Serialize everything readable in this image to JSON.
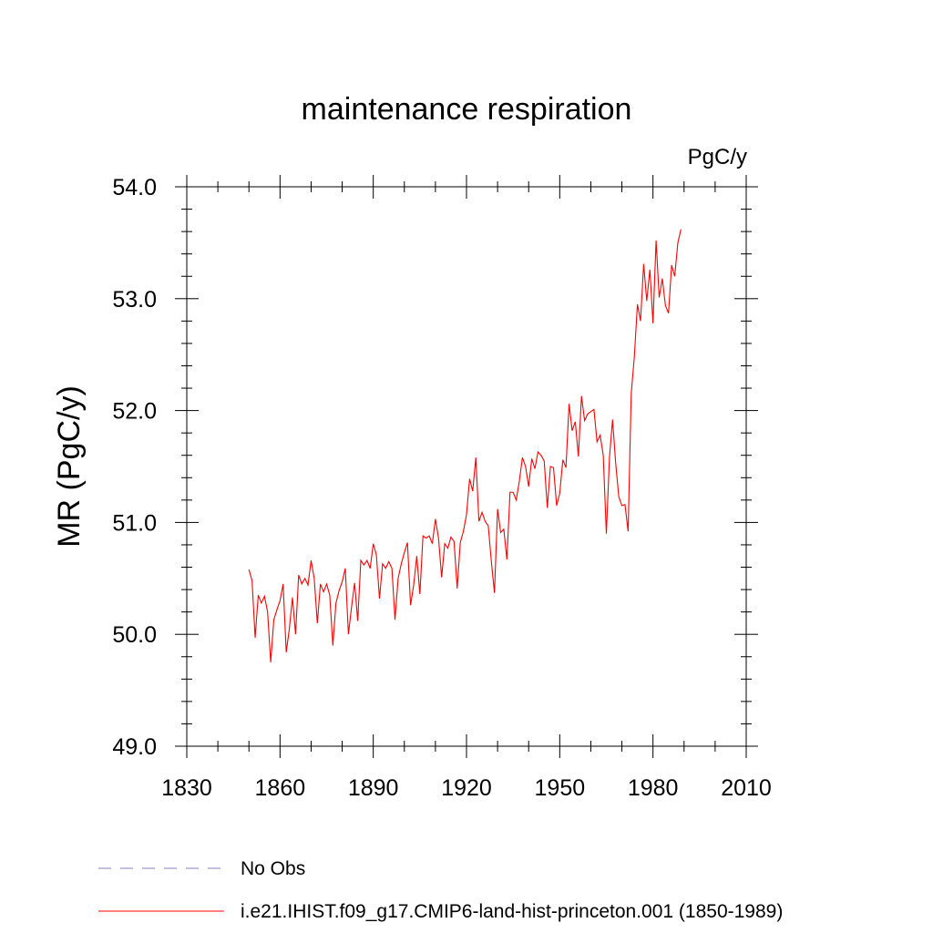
{
  "chart_data": {
    "type": "line",
    "title": "maintenance respiration",
    "units": "PgC/y",
    "ylabel": "MR  (PgC/y)",
    "xlabel": "",
    "xlim": [
      1830,
      2010
    ],
    "ylim": [
      49.0,
      54.0
    ],
    "x_ticks": [
      1830,
      1860,
      1890,
      1920,
      1950,
      1980,
      2010
    ],
    "x_tick_labels": [
      "1830",
      "1860",
      "1890",
      "1920",
      "1950",
      "1980",
      "2010"
    ],
    "y_ticks": [
      49.0,
      50.0,
      51.0,
      52.0,
      53.0,
      54.0
    ],
    "y_tick_labels": [
      "49.0",
      "50.0",
      "51.0",
      "52.0",
      "53.0",
      "54.0"
    ],
    "grid": false,
    "legend_position": "bottom",
    "series": [
      {
        "name": "No Obs",
        "color": "#8a7fc0",
        "dash": "dashed",
        "x": [],
        "values": []
      },
      {
        "name": "i.e21.IHIST.f09_g17.CMIP6-land-hist-princeton.001 (1850-1989)",
        "color": "#ff0000",
        "dash": "solid",
        "x": [
          1850,
          1851,
          1852,
          1853,
          1854,
          1855,
          1856,
          1857,
          1858,
          1859,
          1860,
          1861,
          1862,
          1863,
          1864,
          1865,
          1866,
          1867,
          1868,
          1869,
          1870,
          1871,
          1872,
          1873,
          1874,
          1875,
          1876,
          1877,
          1878,
          1879,
          1880,
          1881,
          1882,
          1883,
          1884,
          1885,
          1886,
          1887,
          1888,
          1889,
          1890,
          1891,
          1892,
          1893,
          1894,
          1895,
          1896,
          1897,
          1898,
          1899,
          1900,
          1901,
          1902,
          1903,
          1904,
          1905,
          1906,
          1907,
          1908,
          1909,
          1910,
          1911,
          1912,
          1913,
          1914,
          1915,
          1916,
          1917,
          1918,
          1919,
          1920,
          1921,
          1922,
          1923,
          1924,
          1925,
          1926,
          1927,
          1928,
          1929,
          1930,
          1931,
          1932,
          1933,
          1934,
          1935,
          1936,
          1937,
          1938,
          1939,
          1940,
          1941,
          1942,
          1943,
          1944,
          1945,
          1946,
          1947,
          1948,
          1949,
          1950,
          1951,
          1952,
          1953,
          1954,
          1955,
          1956,
          1957,
          1958,
          1959,
          1960,
          1961,
          1962,
          1963,
          1964,
          1965,
          1966,
          1967,
          1968,
          1969,
          1970,
          1971,
          1972,
          1973,
          1974,
          1975,
          1976,
          1977,
          1978,
          1979,
          1980,
          1981,
          1982,
          1983,
          1984,
          1985,
          1986,
          1987,
          1988,
          1989
        ],
        "values": [
          50.58,
          50.48,
          49.97,
          50.35,
          50.28,
          50.34,
          50.2,
          49.75,
          50.13,
          50.22,
          50.3,
          50.45,
          49.84,
          50.05,
          50.33,
          50.0,
          50.53,
          50.45,
          50.5,
          50.44,
          50.66,
          50.5,
          50.1,
          50.45,
          50.38,
          50.45,
          50.35,
          49.9,
          50.28,
          50.39,
          50.47,
          50.59,
          50.0,
          50.24,
          50.46,
          50.12,
          50.66,
          50.62,
          50.66,
          50.59,
          50.81,
          50.71,
          50.32,
          50.63,
          50.59,
          50.65,
          50.59,
          50.13,
          50.5,
          50.63,
          50.73,
          50.82,
          50.26,
          50.44,
          50.7,
          50.36,
          50.88,
          50.86,
          50.88,
          50.81,
          51.03,
          50.86,
          50.51,
          50.81,
          50.77,
          50.87,
          50.83,
          50.41,
          50.82,
          50.92,
          51.07,
          51.39,
          51.28,
          51.58,
          51.01,
          51.09,
          51.01,
          50.97,
          50.65,
          50.37,
          51.12,
          50.91,
          50.94,
          50.67,
          51.27,
          51.27,
          51.2,
          51.37,
          51.58,
          51.5,
          51.32,
          51.57,
          51.48,
          51.63,
          51.6,
          51.55,
          51.13,
          51.5,
          51.49,
          51.15,
          51.26,
          51.56,
          51.49,
          52.06,
          51.82,
          51.9,
          51.59,
          52.13,
          51.91,
          51.97,
          51.99,
          52.01,
          51.72,
          51.78,
          51.6,
          50.9,
          51.58,
          51.92,
          51.53,
          51.23,
          51.15,
          51.16,
          50.92,
          52.15,
          52.48,
          52.95,
          52.8,
          53.31,
          52.98,
          53.26,
          52.78,
          53.52,
          53.01,
          53.18,
          52.94,
          52.87,
          53.3,
          53.2,
          53.5,
          53.62
        ]
      }
    ]
  }
}
